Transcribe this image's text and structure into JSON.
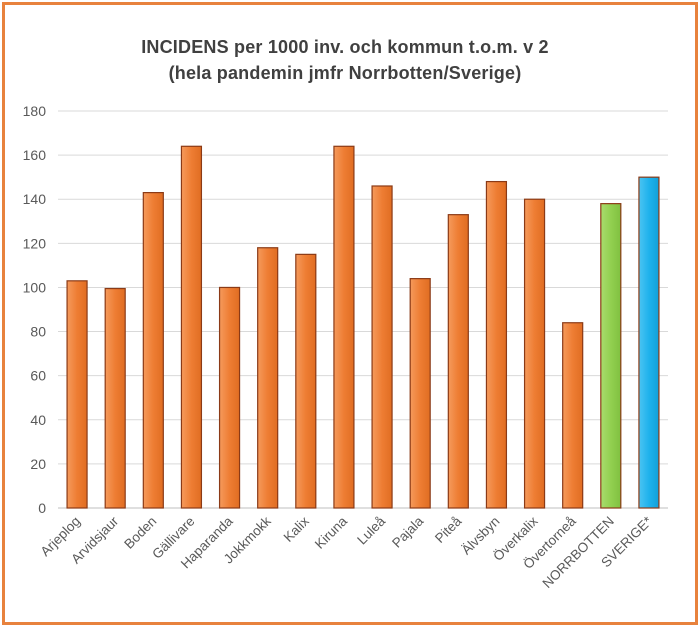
{
  "chart_data": {
    "type": "bar",
    "title_lines": [
      "INCIDENS per 1000 inv. och kommun t.o.m. v 2",
      "(hela pandemin jmfr Norrbotten/Sverige)"
    ],
    "categories": [
      "Arjeplog",
      "Arvidsjaur",
      "Boden",
      "Gällivare",
      "Haparanda",
      "Jokkmokk",
      "Kalix",
      "Kiruna",
      "Luleå",
      "Pajala",
      "Piteå",
      "Älvsbyn",
      "Överkalix",
      "Övertorneå",
      "NORRBOTTEN",
      "SVERIGE*"
    ],
    "values": [
      103,
      99.5,
      143,
      164,
      100,
      118,
      115,
      164,
      146,
      104,
      133,
      148,
      140,
      84,
      138,
      150
    ],
    "colors": [
      "#ee7d33",
      "#ee7d33",
      "#ee7d33",
      "#ee7d33",
      "#ee7d33",
      "#ee7d33",
      "#ee7d33",
      "#ee7d33",
      "#ee7d33",
      "#ee7d33",
      "#ee7d33",
      "#ee7d33",
      "#ee7d33",
      "#ee7d33",
      "#92d050",
      "#1fb2ec"
    ],
    "bar_border_color": "#8b3a16",
    "ylim": [
      0,
      180
    ],
    "yticks": [
      0,
      20,
      40,
      60,
      80,
      100,
      120,
      140,
      160,
      180
    ],
    "grid": true,
    "legend": "none"
  }
}
